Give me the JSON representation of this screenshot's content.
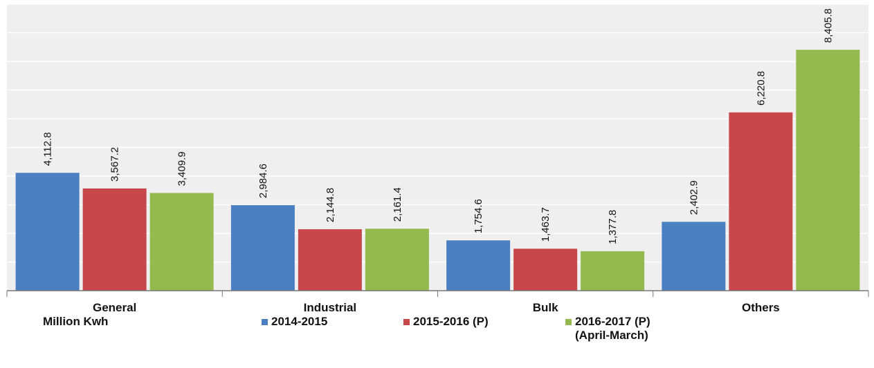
{
  "chart_data": {
    "type": "bar",
    "ylabel": "Million Kwh",
    "categories": [
      "General",
      "Industrial",
      "Bulk",
      "Others"
    ],
    "series": [
      {
        "name": "2014-2015",
        "color": "#4a7fc1",
        "values": [
          4112.8,
          2984.6,
          1754.6,
          2402.9
        ],
        "value_labels": [
          "4,112.8",
          "2,984.6",
          "1,754.6",
          "2,402.9"
        ]
      },
      {
        "name": "2015-2016 (P)",
        "color": "#c8474a",
        "values": [
          3567.2,
          2144.8,
          1463.7,
          6220.8
        ],
        "value_labels": [
          "3,567.2",
          "2,144.8",
          "1,463.7",
          "6,220.8"
        ]
      },
      {
        "name": "2016-2017 (P)\n(April-March)",
        "color": "#94b94f",
        "values": [
          3409.9,
          2161.4,
          1377.8,
          8405.8
        ],
        "value_labels": [
          "3,409.9",
          "2,161.4",
          "1,377.8",
          "8,405.8"
        ]
      }
    ],
    "ylim": [
      0,
      10000
    ],
    "yticks": [
      0,
      1000,
      2000,
      3000,
      4000,
      5000,
      6000,
      7000,
      8000,
      9000,
      10000
    ],
    "grid": true
  }
}
